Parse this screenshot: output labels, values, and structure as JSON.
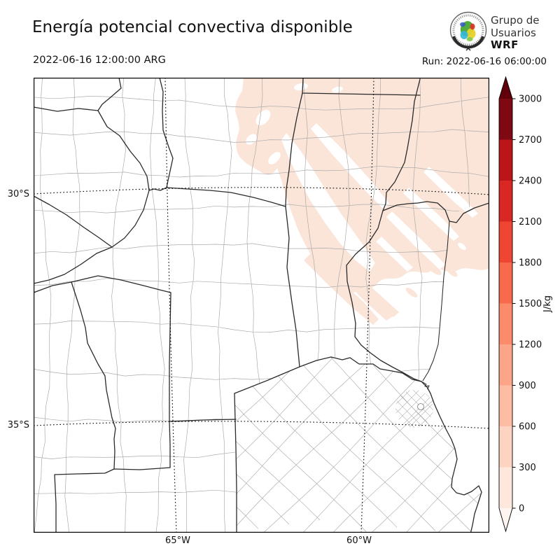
{
  "header": {
    "title": "Energía potencial convectiva disponible",
    "valid_time": "2022-06-16 12:00:00 ARG",
    "run_label": "Run: 2022-06-16 06:00:00"
  },
  "logo": {
    "line1": "Grupo de",
    "line2": "Usuarios",
    "line3": "WRF"
  },
  "axes": {
    "lat_labels": [
      "30°S",
      "35°S"
    ],
    "lon_labels": [
      "65°W",
      "60°W"
    ]
  },
  "colorbar": {
    "unit": "J/kg",
    "levels": [
      0,
      300,
      600,
      900,
      1200,
      1500,
      1800,
      2100,
      2400,
      2700,
      3000
    ],
    "bin_colors": [
      "#fee8dd",
      "#fdd3c1",
      "#fcbda4",
      "#fca588",
      "#fc8b6b",
      "#f9694c",
      "#ef4533",
      "#d92723",
      "#bb151a",
      "#7e0912"
    ],
    "under_color": "#fff5f0",
    "over_color": "#5f000a"
  },
  "map_colors": {
    "shade_0_300": "#fbe4d8",
    "department_line": "#ababab",
    "province_line": "#2a2a2a"
  },
  "chart_data": {
    "type": "heatmap",
    "title": "Energía potencial convectiva disponible",
    "valid_time": "2022-06-16 12:00:00 ARG",
    "run_time": "Run: 2022-06-16 06:00:00",
    "unit": "J/kg",
    "colormap": "Reds",
    "levels": [
      0,
      300,
      600,
      900,
      1200,
      1500,
      1800,
      2100,
      2400,
      2700,
      3000
    ],
    "colorbar_extend": "both",
    "xticks": [
      "65°W",
      "60°W"
    ],
    "yticks": [
      "30°S",
      "35°S"
    ],
    "grid": "dotted lat/lon graticule",
    "legend_position": "right vertical colorbar",
    "regions": [
      {
        "area": "northeast of domain (N Santa Fe, Corrientes, N Entre Ríos, S Chaco)",
        "value_range": [
          0,
          300
        ],
        "appearance": "light pink with white zero streaks oriented NW-SE"
      },
      {
        "area": "rest of domain (Córdoba, Cuyo, La Pampa, Buenos Aires)",
        "value_range": [
          0,
          0
        ],
        "appearance": "white (no CAPE)"
      }
    ]
  }
}
